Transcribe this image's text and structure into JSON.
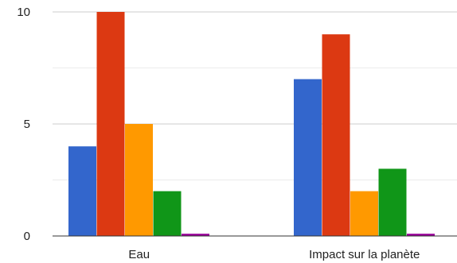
{
  "chart_data": {
    "type": "bar",
    "categories": [
      "Eau",
      "Impact sur la planète"
    ],
    "series": [
      {
        "values": [
          4,
          7
        ],
        "color": "#3366cc"
      },
      {
        "values": [
          10,
          9
        ],
        "color": "#dc3912"
      },
      {
        "values": [
          5,
          2
        ],
        "color": "#ff9900"
      },
      {
        "values": [
          2,
          3
        ],
        "color": "#109618"
      },
      {
        "values": [
          0.1,
          0.1
        ],
        "color": "#990099"
      }
    ],
    "yticks": [
      "0",
      "5",
      "10"
    ],
    "ylim": [
      0,
      10
    ],
    "grid": true,
    "legend": "none"
  }
}
